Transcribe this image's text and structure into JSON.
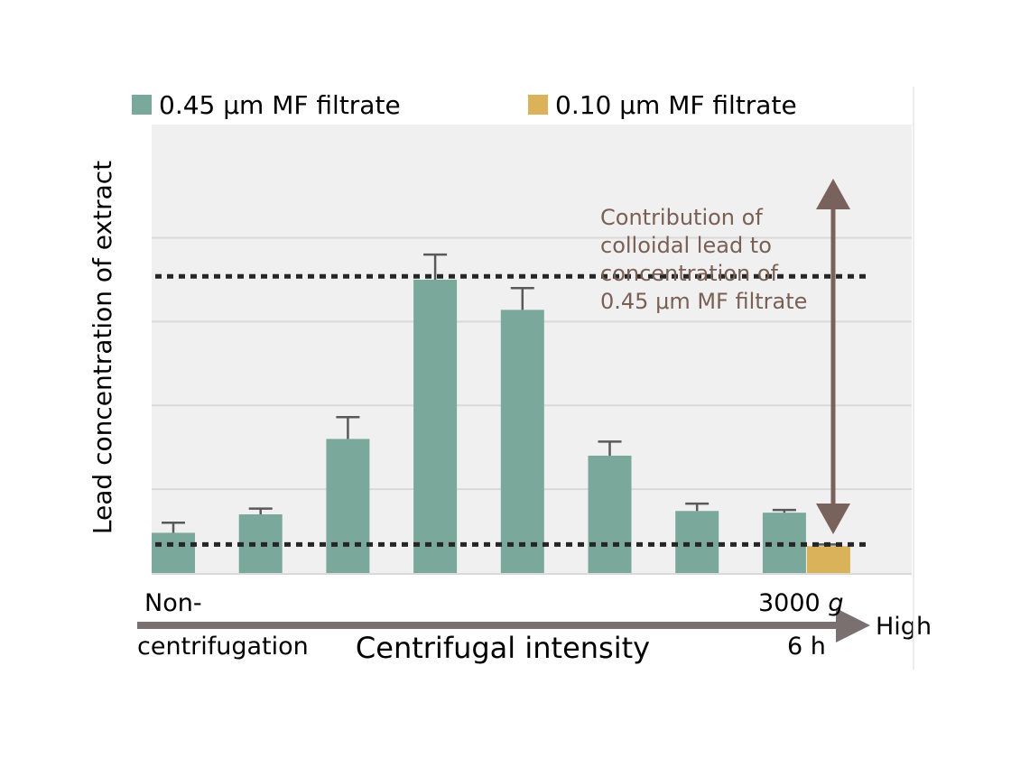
{
  "chart_data": {
    "type": "bar",
    "ylabel": "Lead concentration of extract",
    "xlabel": "Centrifugal intensity",
    "x_start_label_line1": "Non-",
    "x_start_label_line2": "centrifugation",
    "x_end_label_line1": "3000",
    "x_end_label_unit": "g",
    "x_end_label_line2": "6 h",
    "x_arrow_label": "High",
    "annotation_lines": [
      "Contribution of",
      "colloidal lead to",
      "concentration of",
      "0.45 μm MF filtrate"
    ],
    "ylim": [
      0,
      100
    ],
    "gridlines": [
      25,
      50,
      75,
      100
    ],
    "grid": true,
    "legend_position": "top",
    "series": [
      {
        "name": "0.45 μm MF filtrate",
        "color": "#7aa89a",
        "values": [
          12,
          17.5,
          40,
          87.5,
          78.5,
          35,
          18.5,
          18
        ],
        "errors": [
          3,
          1.7,
          6.5,
          7.5,
          6.5,
          4.2,
          2.2,
          0.8
        ]
      },
      {
        "name": "0.10 μm MF filtrate",
        "color": "#d9b25a",
        "values": [
          null,
          null,
          null,
          null,
          null,
          null,
          null,
          8
        ],
        "errors": [
          null,
          null,
          null,
          null,
          null,
          null,
          null,
          0.5
        ]
      }
    ],
    "reference_lines": [
      {
        "value": 88.5,
        "style": "dotted"
      },
      {
        "value": 8.5,
        "style": "dotted"
      }
    ],
    "colors": {
      "plot_bg": "#f0f0f0",
      "grid": "#d9d9d9",
      "arrow": "#7a625c",
      "axis_arrow": "#7a7070",
      "annotation": "#7a5f55"
    }
  }
}
